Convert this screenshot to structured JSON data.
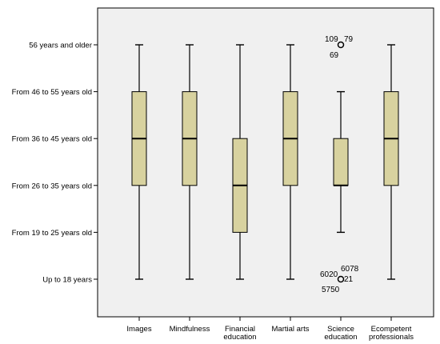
{
  "chart_data": {
    "type": "boxplot",
    "orientation": "vertical",
    "y_ticks": [
      "Up to 18 years",
      "From 19 to 25 years old",
      "From 26 to 35 years old",
      "From 36 to 45 years old",
      "From 46 to 55  years old",
      "56 years and older"
    ],
    "ylim": [
      0.5,
      6.8
    ],
    "categories": [
      [
        "Images"
      ],
      [
        "Mindfulness"
      ],
      [
        "Financial",
        "education"
      ],
      [
        "Martial arts"
      ],
      [
        "Science",
        "education"
      ],
      [
        "Ecompetent",
        "professionals"
      ]
    ],
    "boxes": [
      {
        "whisker_low": 1,
        "q1": 3,
        "median": 4,
        "q3": 5,
        "whisker_high": 6
      },
      {
        "whisker_low": 1,
        "q1": 3,
        "median": 4,
        "q3": 5,
        "whisker_high": 6
      },
      {
        "whisker_low": 1,
        "q1": 2,
        "median": 3,
        "q3": 4,
        "whisker_high": 6
      },
      {
        "whisker_low": 1,
        "q1": 3,
        "median": 4,
        "q3": 5,
        "whisker_high": 6
      },
      {
        "whisker_low": 2,
        "q1": 3,
        "median": 3,
        "q3": 4,
        "whisker_high": 5
      },
      {
        "whisker_low": 1,
        "q1": 3,
        "median": 4,
        "q3": 5,
        "whisker_high": 6
      }
    ],
    "outliers": [
      {
        "category_index": 4,
        "y": 6,
        "labels": [
          "109",
          "79",
          "69"
        ]
      },
      {
        "category_index": 4,
        "y": 1,
        "labels": [
          "6020",
          "6078",
          "21",
          "5750"
        ]
      }
    ],
    "colors": {
      "box_fill": "#d8d29f",
      "plot_background": "#f0f0f0",
      "line": "#000000"
    },
    "grid": false,
    "legend": "none"
  }
}
